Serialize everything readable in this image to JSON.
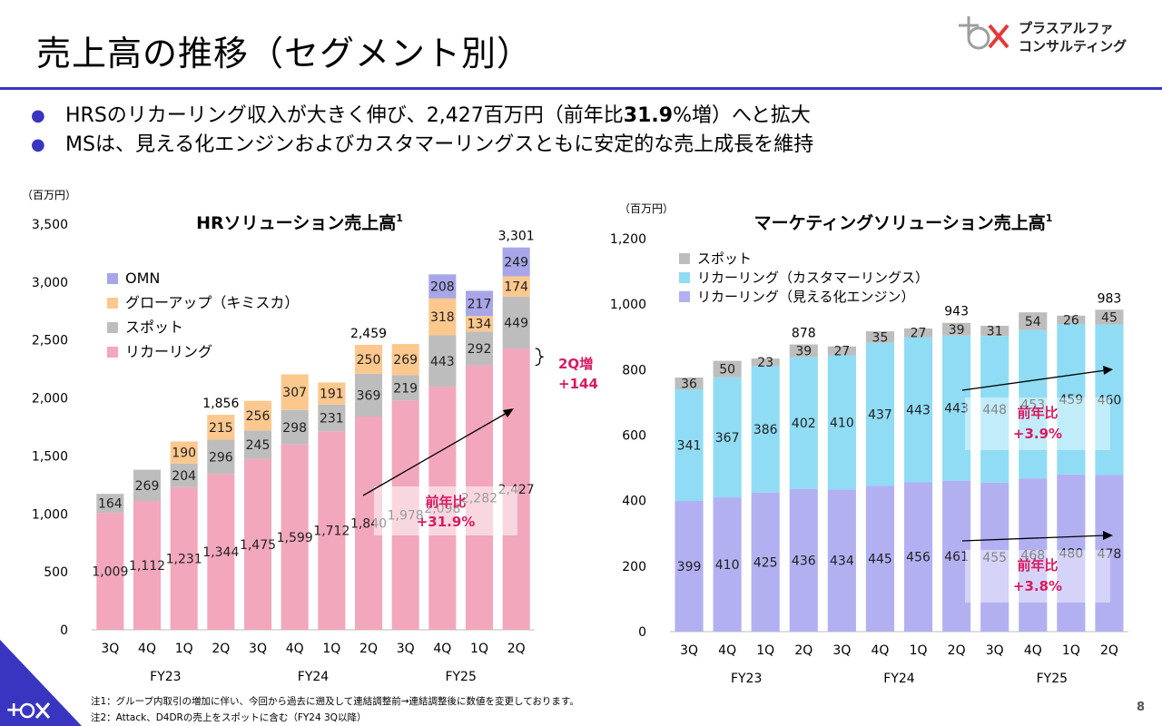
{
  "page": {
    "title": "売上高の推移（セグメント別）",
    "logo_text": [
      "プラスアルファ",
      "コンサルティング"
    ],
    "bullets": [
      {
        "pre": "HRSのリカーリング収入が大きく伸び、2,427百万円（前年比",
        "bold": "31.9",
        "post": "%増）へと拡大"
      },
      {
        "pre": "MSは、見える化エンジンおよびカスタマーリングスともに安定的な売上成長を維持",
        "bold": "",
        "post": ""
      }
    ],
    "footnotes": [
      "注1：グループ内取引の増加に伴い、今回から過去に遡及して連結調整前→連結調整後に数値を変更しております。",
      "注2：Attack、D4DRの売上をスポットに含む（FY24 3Q以降）"
    ],
    "page_number": "8",
    "colors": {
      "accent": "#3a35c0",
      "highlight": "#d81b60"
    }
  },
  "chart_data": [
    {
      "type": "bar",
      "stacked": true,
      "title": "HRソリューション売上高",
      "title_sup": "1",
      "unit": "（百万円）",
      "ylim": [
        0,
        3500
      ],
      "yticks": [
        0,
        500,
        1000,
        1500,
        2000,
        2500,
        3000,
        3500
      ],
      "ytick_labels": [
        "0",
        "500",
        "1,000",
        "1,500",
        "2,000",
        "2,500",
        "3,000",
        "3,500"
      ],
      "categories": [
        "3Q",
        "4Q",
        "1Q",
        "2Q",
        "3Q",
        "4Q",
        "1Q",
        "2Q",
        "3Q",
        "4Q",
        "1Q",
        "2Q"
      ],
      "fiscal_years": [
        "FY23",
        "FY24",
        "FY25"
      ],
      "legend_placement": "top-left",
      "legend_order": [
        "OMN",
        "グローアップ（キミスカ）",
        "スポット",
        "リカーリング"
      ],
      "series": [
        {
          "name": "リカーリング",
          "color": "#f2a7bd",
          "values": [
            1009,
            1112,
            1231,
            1344,
            1475,
            1599,
            1712,
            1840,
            1978,
            2098,
            2282,
            2427
          ],
          "labels": [
            "1,009",
            "1,112",
            "1,231",
            "1,344",
            "1,475",
            "1,599",
            "1,712",
            "1,840",
            "1,978",
            "2,098",
            "2,282",
            "2,427"
          ]
        },
        {
          "name": "スポット",
          "color": "#bdbdbd",
          "values": [
            164,
            269,
            204,
            296,
            245,
            298,
            231,
            369,
            219,
            443,
            292,
            449
          ],
          "labels": [
            "164",
            "269",
            "204",
            "296",
            "245",
            "298",
            "231",
            "369",
            "219",
            "443",
            "292",
            "449"
          ]
        },
        {
          "name": "グローアップ（キミスカ）",
          "color": "#fcc88e",
          "values": [
            0,
            0,
            190,
            215,
            256,
            307,
            191,
            250,
            269,
            318,
            134,
            174
          ],
          "labels": [
            "",
            "",
            "190",
            "215",
            "256",
            "307",
            "191",
            "250",
            "269",
            "318",
            "134",
            "174"
          ]
        },
        {
          "name": "OMN",
          "color": "#a8a6e8",
          "values": [
            0,
            0,
            0,
            0,
            0,
            0,
            0,
            0,
            0,
            208,
            217,
            249
          ],
          "labels": [
            "",
            "",
            "",
            "",
            "",
            "",
            "",
            "",
            "",
            "208",
            "217",
            "249"
          ]
        }
      ],
      "totals": [
        "",
        "",
        "",
        "1,856",
        "",
        "",
        "",
        "2,459",
        "",
        "",
        "",
        "3,301"
      ],
      "annotations": {
        "yoy_label": "前年比",
        "yoy_value": "+31.9%",
        "q_increase_label": "2Q増",
        "q_increase_value": "+144"
      }
    },
    {
      "type": "bar",
      "stacked": true,
      "title": "マーケティングソリューション売上高",
      "title_sup": "1",
      "unit": "（百万円）",
      "ylim": [
        0,
        1200
      ],
      "yticks": [
        0,
        200,
        400,
        600,
        800,
        1000,
        1200
      ],
      "ytick_labels": [
        "0",
        "200",
        "400",
        "600",
        "800",
        "1,000",
        "1,200"
      ],
      "categories": [
        "3Q",
        "4Q",
        "1Q",
        "2Q",
        "3Q",
        "4Q",
        "1Q",
        "2Q",
        "3Q",
        "4Q",
        "1Q",
        "2Q"
      ],
      "fiscal_years": [
        "FY23",
        "FY24",
        "FY25"
      ],
      "legend_placement": "top-left",
      "legend_order": [
        "スポット",
        "リカーリング（カスタマーリングス）",
        "リカーリング（見える化エンジン）"
      ],
      "series": [
        {
          "name": "リカーリング（見える化エンジン）",
          "color": "#b3b0f2",
          "values": [
            399,
            410,
            425,
            436,
            434,
            445,
            456,
            461,
            455,
            468,
            480,
            478
          ],
          "labels": [
            "399",
            "410",
            "425",
            "436",
            "434",
            "445",
            "456",
            "461",
            "455",
            "468",
            "480",
            "478"
          ]
        },
        {
          "name": "リカーリング（カスタマーリングス）",
          "color": "#8fdcf4",
          "values": [
            341,
            367,
            386,
            402,
            410,
            437,
            443,
            443,
            448,
            453,
            459,
            460
          ],
          "labels": [
            "341",
            "367",
            "386",
            "402",
            "410",
            "437",
            "443",
            "443",
            "448",
            "453",
            "459",
            "460"
          ]
        },
        {
          "name": "スポット",
          "color": "#bdbdbd",
          "values": [
            36,
            50,
            23,
            39,
            27,
            35,
            27,
            39,
            31,
            54,
            26,
            45
          ],
          "labels": [
            "36",
            "50",
            "23",
            "39",
            "27",
            "35",
            "27",
            "39",
            "31",
            "54",
            "26",
            "45"
          ]
        }
      ],
      "totals": [
        "",
        "",
        "",
        "878",
        "",
        "",
        "",
        "943",
        "",
        "",
        "",
        "983"
      ],
      "annotations": {
        "yoy1_label": "前年比",
        "yoy1_value": "+3.9%",
        "yoy2_label": "前年比",
        "yoy2_value": "+3.8%"
      }
    }
  ]
}
